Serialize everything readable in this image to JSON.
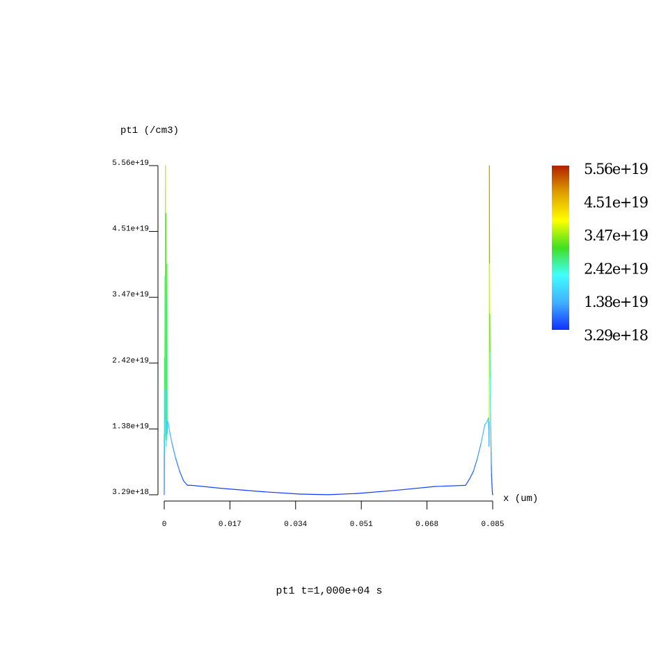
{
  "chart_data": {
    "type": "line",
    "ylabel": "pt1 (/cm3)",
    "xlabel": "x (um)",
    "caption": "pt1 t=1,000e+04 s",
    "xlim": [
      0,
      0.085
    ],
    "ylim": [
      3.29e+18,
      5.56e+19
    ],
    "x_ticks": [
      "0",
      "0.017",
      "0.034",
      "0.051",
      "0.068",
      "0.085"
    ],
    "y_ticks": [
      "3.29e+18",
      "1.38e+19",
      "2.42e+19",
      "3.47e+19",
      "4.51e+19",
      "5.56e+19"
    ],
    "colorbar_labels": [
      "5.56e+19",
      "4.51e+19",
      "3.47e+19",
      "2.42e+19",
      "1.38e+19",
      "3.29e+18"
    ],
    "colorbar_colors": [
      "#1030ff",
      "#40b0ff",
      "#40ffff",
      "#40e020",
      "#ffff00",
      "#e0a000",
      "#b02000"
    ],
    "series": [
      {
        "x": [
          0.0,
          3e-05,
          6e-05,
          0.0001,
          0.00015,
          0.0002,
          0.00025,
          0.0003,
          0.00035,
          0.0004,
          0.00045,
          0.0005,
          0.00055,
          0.0006,
          0.00065,
          0.0007,
          0.00075,
          0.0008,
          0.00085,
          0.0009,
          0.001,
          0.0015,
          0.002,
          0.003,
          0.004,
          0.005,
          0.006,
          0.007,
          0.015,
          0.025,
          0.035,
          0.0425,
          0.05,
          0.06,
          0.07,
          0.078,
          0.079,
          0.08,
          0.081,
          0.082,
          0.083,
          0.0835,
          0.0839,
          0.084,
          0.08405,
          0.0841,
          0.08415,
          0.0842,
          0.08425,
          0.0843,
          0.08435,
          0.0844,
          0.08445,
          0.0845,
          0.08455,
          0.0846,
          0.08465,
          0.0847,
          0.0848,
          0.0849,
          0.085
        ],
        "y": [
          3.3e+18,
          1.3e+19,
          2.5e+19,
          1e+19,
          2e+19,
          3.8e+19,
          1.2e+19,
          5.56e+19,
          1.5e+19,
          4.8e+19,
          1.25e+19,
          2e+19,
          1.1e+19,
          3.5e+19,
          1.2e+19,
          4e+19,
          1.3e+19,
          1.45e+19,
          1.5e+19,
          1.5e+19,
          1.48e+19,
          1.3e+19,
          1.15e+19,
          9e+18,
          7e+18,
          5.5e+18,
          4.8e+18,
          4.8e+18,
          4.3e+18,
          3.8e+18,
          3.4e+18,
          3.3e+18,
          3.5e+18,
          4e+18,
          4.6e+18,
          4.8e+18,
          5.8e+18,
          7e+18,
          9e+18,
          1.15e+19,
          1.45e+19,
          1.48e+19,
          1.55e+19,
          1.3e+19,
          1.1e+19,
          1.5e+19,
          5.56e+19,
          4e+19,
          3.2e+19,
          2.6e+19,
          2.2e+19,
          1.9e+19,
          1.6e+19,
          1.4e+19,
          1.2e+19,
          1e+19,
          8e+18,
          6.5e+18,
          5e+18,
          3.8e+18,
          3.29e+18
        ]
      }
    ]
  }
}
